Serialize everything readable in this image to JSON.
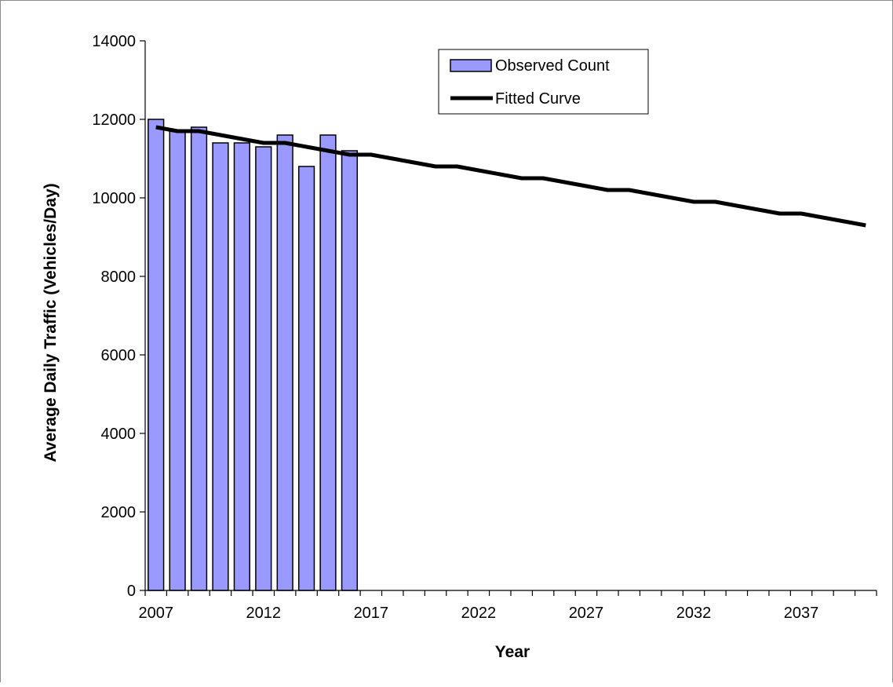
{
  "chart_data": {
    "type": "bar",
    "title": "",
    "xlabel": "Year",
    "ylabel": "Average Daily Traffic (Vehicles/Day)",
    "ylim": [
      0,
      14000
    ],
    "xlim": [
      2006.5,
      2040.5
    ],
    "yticks": [
      "0",
      "2000",
      "4000",
      "6000",
      "8000",
      "10000",
      "12000",
      "14000"
    ],
    "xticks": [
      "2007",
      "2012",
      "2017",
      "2022",
      "2027",
      "2032",
      "2037"
    ],
    "grid": false,
    "legend_position": "top-center",
    "colors": {
      "bar_fill": "#9999ff",
      "bar_stroke": "#000000",
      "line": "#000000",
      "axis": "#000000"
    },
    "series": [
      {
        "name": "Observed Count",
        "type": "bar",
        "x": [
          2007,
          2008,
          2009,
          2010,
          2011,
          2012,
          2013,
          2014,
          2015,
          2016
        ],
        "values": [
          12000,
          11700,
          11800,
          11400,
          11400,
          11300,
          11600,
          10800,
          11600,
          11200
        ]
      },
      {
        "name": "Fitted Curve",
        "type": "line",
        "x": [
          2007,
          2008,
          2009,
          2010,
          2011,
          2012,
          2013,
          2014,
          2015,
          2016,
          2017,
          2018,
          2019,
          2020,
          2021,
          2022,
          2023,
          2024,
          2025,
          2026,
          2027,
          2028,
          2029,
          2030,
          2031,
          2032,
          2033,
          2034,
          2035,
          2036,
          2037,
          2038,
          2039,
          2040
        ],
        "values": [
          11800,
          11700,
          11700,
          11600,
          11500,
          11400,
          11400,
          11300,
          11200,
          11100,
          11100,
          11000,
          10900,
          10800,
          10800,
          10700,
          10600,
          10500,
          10500,
          10400,
          10300,
          10200,
          10200,
          10100,
          10000,
          9900,
          9900,
          9800,
          9700,
          9600,
          9600,
          9500,
          9400,
          9300
        ]
      }
    ]
  }
}
